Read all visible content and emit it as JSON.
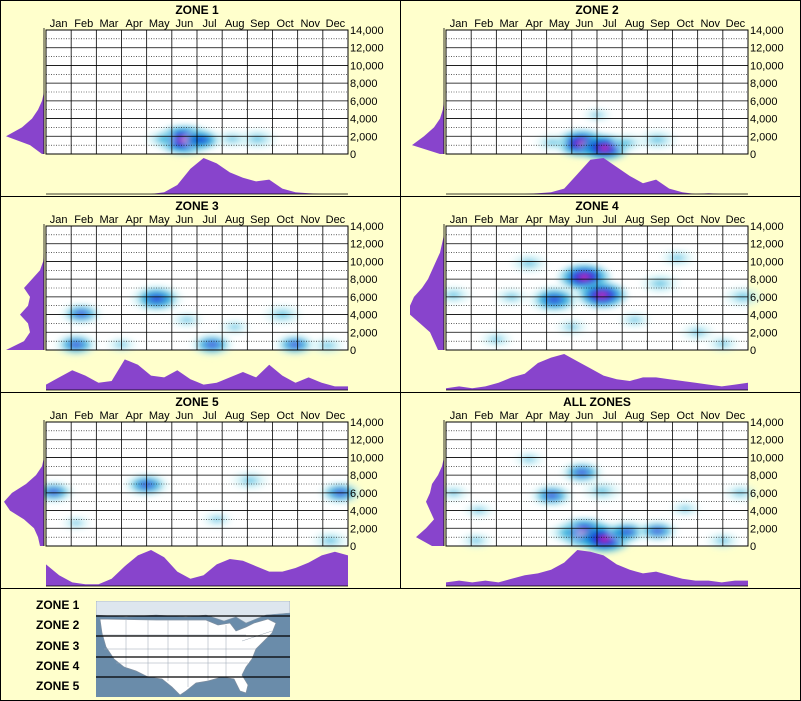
{
  "colors": {
    "background": "#ffffcc",
    "grid_border": "#000000",
    "density_fill": "#8844cc",
    "heat_low": "#c6f0f4",
    "heat_mid": "#16a6d6",
    "heat_high": "#1b2fd9",
    "heat_peak": "#d51fb0",
    "map_water": "#6a8caa",
    "map_land": "#ffffff"
  },
  "chart_data": [
    {
      "type": "heatmap",
      "title": "ZONE 1",
      "categories": [
        "Jan",
        "Feb",
        "Mar",
        "Apr",
        "May",
        "Jun",
        "Jul",
        "Aug",
        "Sep",
        "Oct",
        "Nov",
        "Dec"
      ],
      "y_ticks": [
        "14,000",
        "12,000",
        "10,000",
        "8,000",
        "6,000",
        "4,000",
        "2,000",
        "0"
      ],
      "ylim": [
        0,
        14000
      ],
      "hotspots": [
        {
          "month": 5.5,
          "elev": 1600,
          "intensity": 1.0
        },
        {
          "month": 6.2,
          "elev": 1600,
          "intensity": 0.55
        },
        {
          "month": 4.6,
          "elev": 1700,
          "intensity": 0.3
        },
        {
          "month": 8.4,
          "elev": 1700,
          "intensity": 0.45
        },
        {
          "month": 7.4,
          "elev": 1700,
          "intensity": 0.3
        }
      ],
      "month_density": [
        0,
        0,
        0,
        0,
        0,
        0,
        0,
        0,
        0,
        0.05,
        0.25,
        0.7,
        1.0,
        0.85,
        0.6,
        0.45,
        0.35,
        0.4,
        0.15,
        0.05,
        0.02,
        0,
        0,
        0
      ],
      "elevation_density": [
        0.05,
        0.35,
        0.95,
        0.55,
        0.3,
        0.15,
        0.05,
        0,
        0,
        0,
        0,
        0,
        0,
        0,
        0
      ]
    },
    {
      "type": "heatmap",
      "title": "ZONE 2",
      "categories": [
        "Jan",
        "Feb",
        "Mar",
        "Apr",
        "May",
        "Jun",
        "Jul",
        "Aug",
        "Sep",
        "Oct",
        "Nov",
        "Dec"
      ],
      "y_ticks": [
        "14,000",
        "12,000",
        "10,000",
        "8,000",
        "6,000",
        "4,000",
        "2,000",
        "0"
      ],
      "ylim": [
        0,
        14000
      ],
      "hotspots": [
        {
          "month": 5.4,
          "elev": 1200,
          "intensity": 0.9
        },
        {
          "month": 6.3,
          "elev": 700,
          "intensity": 0.85
        },
        {
          "month": 4.2,
          "elev": 1300,
          "intensity": 0.3
        },
        {
          "month": 8.4,
          "elev": 1600,
          "intensity": 0.45
        },
        {
          "month": 7.2,
          "elev": 1300,
          "intensity": 0.35
        },
        {
          "month": 6.0,
          "elev": 4400,
          "intensity": 0.15
        }
      ],
      "month_density": [
        0,
        0,
        0,
        0,
        0,
        0,
        0,
        0.02,
        0.05,
        0.15,
        0.55,
        0.95,
        1.0,
        0.75,
        0.5,
        0.3,
        0.4,
        0.15,
        0.05,
        0,
        0.02,
        0,
        0,
        0
      ],
      "elevation_density": [
        0.1,
        0.8,
        0.5,
        0.25,
        0.1,
        0.03,
        0,
        0,
        0,
        0,
        0,
        0,
        0,
        0,
        0
      ]
    },
    {
      "type": "heatmap",
      "title": "ZONE 3",
      "categories": [
        "Jan",
        "Feb",
        "Mar",
        "Apr",
        "May",
        "Jun",
        "Jul",
        "Aug",
        "Sep",
        "Oct",
        "Nov",
        "Dec"
      ],
      "y_ticks": [
        "14,000",
        "12,000",
        "10,000",
        "8,000",
        "6,000",
        "4,000",
        "2,000",
        "0"
      ],
      "ylim": [
        0,
        14000
      ],
      "hotspots": [
        {
          "month": 4.4,
          "elev": 5800,
          "intensity": 0.8
        },
        {
          "month": 1.4,
          "elev": 4100,
          "intensity": 0.5
        },
        {
          "month": 1.2,
          "elev": 600,
          "intensity": 0.55
        },
        {
          "month": 9.4,
          "elev": 4000,
          "intensity": 0.45
        },
        {
          "month": 9.9,
          "elev": 600,
          "intensity": 0.5
        },
        {
          "month": 6.6,
          "elev": 600,
          "intensity": 0.55
        },
        {
          "month": 5.6,
          "elev": 3400,
          "intensity": 0.25
        },
        {
          "month": 7.5,
          "elev": 2600,
          "intensity": 0.2
        },
        {
          "month": 11.2,
          "elev": 500,
          "intensity": 0.3
        },
        {
          "month": 3.0,
          "elev": 600,
          "intensity": 0.2
        }
      ],
      "month_density": [
        0.15,
        0.35,
        0.55,
        0.4,
        0.2,
        0.25,
        0.85,
        0.7,
        0.4,
        0.35,
        0.55,
        0.3,
        0.15,
        0.2,
        0.35,
        0.5,
        0.35,
        0.7,
        0.4,
        0.2,
        0.35,
        0.2,
        0.1,
        0.1
      ],
      "elevation_density": [
        0.95,
        0.5,
        0.35,
        0.4,
        0.6,
        0.4,
        0.35,
        0.5,
        0.3,
        0.1,
        0.02,
        0,
        0,
        0,
        0
      ]
    },
    {
      "type": "heatmap",
      "title": "ZONE 4",
      "categories": [
        "Jan",
        "Feb",
        "Mar",
        "Apr",
        "May",
        "Jun",
        "Jul",
        "Aug",
        "Sep",
        "Oct",
        "Nov",
        "Dec"
      ],
      "y_ticks": [
        "14,000",
        "12,000",
        "10,000",
        "8,000",
        "6,000",
        "4,000",
        "2,000",
        "0"
      ],
      "ylim": [
        0,
        14000
      ],
      "hotspots": [
        {
          "month": 5.5,
          "elev": 8200,
          "intensity": 0.9
        },
        {
          "month": 6.2,
          "elev": 6200,
          "intensity": 0.85
        },
        {
          "month": 4.3,
          "elev": 5700,
          "intensity": 0.8
        },
        {
          "month": 3.3,
          "elev": 9800,
          "intensity": 0.4
        },
        {
          "month": 8.5,
          "elev": 7500,
          "intensity": 0.45
        },
        {
          "month": 11.8,
          "elev": 6000,
          "intensity": 0.45
        },
        {
          "month": 0.3,
          "elev": 6200,
          "intensity": 0.35
        },
        {
          "month": 2.6,
          "elev": 6000,
          "intensity": 0.3
        },
        {
          "month": 9.2,
          "elev": 10400,
          "intensity": 0.3
        },
        {
          "month": 10.0,
          "elev": 2000,
          "intensity": 0.3
        },
        {
          "month": 5.0,
          "elev": 2600,
          "intensity": 0.25
        },
        {
          "month": 7.5,
          "elev": 3400,
          "intensity": 0.25
        },
        {
          "month": 11.0,
          "elev": 700,
          "intensity": 0.25
        },
        {
          "month": 2.0,
          "elev": 1200,
          "intensity": 0.25
        }
      ],
      "month_density": [
        0.05,
        0.1,
        0.05,
        0.1,
        0.2,
        0.35,
        0.45,
        0.75,
        0.9,
        1.0,
        0.8,
        0.6,
        0.4,
        0.3,
        0.25,
        0.35,
        0.35,
        0.3,
        0.25,
        0.2,
        0.15,
        0.1,
        0.15,
        0.2
      ],
      "elevation_density": [
        0.15,
        0.25,
        0.35,
        0.6,
        0.85,
        0.85,
        0.75,
        0.55,
        0.4,
        0.3,
        0.2,
        0.1,
        0.05,
        0,
        0
      ]
    },
    {
      "type": "heatmap",
      "title": "ZONE 5",
      "categories": [
        "Jan",
        "Feb",
        "Mar",
        "Apr",
        "May",
        "Jun",
        "Jul",
        "Aug",
        "Sep",
        "Oct",
        "Nov",
        "Dec"
      ],
      "y_ticks": [
        "14,000",
        "12,000",
        "10,000",
        "8,000",
        "6,000",
        "4,000",
        "2,000",
        "0"
      ],
      "ylim": [
        0,
        14000
      ],
      "hotspots": [
        {
          "month": 4.0,
          "elev": 6900,
          "intensity": 0.6
        },
        {
          "month": 0.3,
          "elev": 6100,
          "intensity": 0.5
        },
        {
          "month": 11.7,
          "elev": 6000,
          "intensity": 0.55
        },
        {
          "month": 8.1,
          "elev": 7400,
          "intensity": 0.4
        },
        {
          "month": 11.3,
          "elev": 600,
          "intensity": 0.4
        },
        {
          "month": 6.8,
          "elev": 3000,
          "intensity": 0.2
        },
        {
          "month": 1.2,
          "elev": 2600,
          "intensity": 0.15
        }
      ],
      "month_density": [
        0.6,
        0.3,
        0.1,
        0.05,
        0.05,
        0.2,
        0.55,
        0.85,
        1.0,
        0.8,
        0.4,
        0.2,
        0.3,
        0.6,
        0.75,
        0.7,
        0.55,
        0.4,
        0.4,
        0.5,
        0.65,
        0.85,
        0.95,
        0.85
      ],
      "elevation_density": [
        0.1,
        0.15,
        0.25,
        0.5,
        0.85,
        1.0,
        0.8,
        0.45,
        0.2,
        0.05,
        0,
        0,
        0,
        0,
        0
      ]
    },
    {
      "type": "heatmap",
      "title": "ALL ZONES",
      "categories": [
        "Jan",
        "Feb",
        "Mar",
        "Apr",
        "May",
        "Jun",
        "Jul",
        "Aug",
        "Sep",
        "Oct",
        "Nov",
        "Dec"
      ],
      "y_ticks": [
        "14,000",
        "12,000",
        "10,000",
        "8,000",
        "6,000",
        "4,000",
        "2,000",
        "0"
      ],
      "ylim": [
        0,
        14000
      ],
      "hotspots": [
        {
          "month": 5.5,
          "elev": 1500,
          "intensity": 0.95
        },
        {
          "month": 6.3,
          "elev": 800,
          "intensity": 0.95
        },
        {
          "month": 4.8,
          "elev": 1500,
          "intensity": 0.4
        },
        {
          "month": 7.2,
          "elev": 1600,
          "intensity": 0.55
        },
        {
          "month": 8.4,
          "elev": 1700,
          "intensity": 0.5
        },
        {
          "month": 5.4,
          "elev": 8300,
          "intensity": 0.55
        },
        {
          "month": 4.2,
          "elev": 5700,
          "intensity": 0.55
        },
        {
          "month": 6.2,
          "elev": 6200,
          "intensity": 0.45
        },
        {
          "month": 0.3,
          "elev": 6000,
          "intensity": 0.25
        },
        {
          "month": 11.7,
          "elev": 6000,
          "intensity": 0.3
        },
        {
          "month": 1.3,
          "elev": 4000,
          "intensity": 0.2
        },
        {
          "month": 9.5,
          "elev": 4200,
          "intensity": 0.2
        },
        {
          "month": 11.0,
          "elev": 600,
          "intensity": 0.3
        },
        {
          "month": 1.2,
          "elev": 600,
          "intensity": 0.25
        },
        {
          "month": 3.3,
          "elev": 9800,
          "intensity": 0.2
        }
      ],
      "month_density": [
        0.1,
        0.15,
        0.1,
        0.15,
        0.1,
        0.2,
        0.3,
        0.35,
        0.45,
        0.65,
        1.0,
        0.95,
        0.85,
        0.6,
        0.45,
        0.35,
        0.4,
        0.3,
        0.2,
        0.15,
        0.15,
        0.1,
        0.15,
        0.15
      ],
      "elevation_density": [
        0.3,
        0.7,
        0.45,
        0.25,
        0.35,
        0.45,
        0.35,
        0.3,
        0.15,
        0.05,
        0,
        0,
        0,
        0,
        0
      ]
    }
  ],
  "legend": {
    "zones": [
      "ZONE 1",
      "ZONE 2",
      "ZONE 3",
      "ZONE 4",
      "ZONE 5"
    ]
  }
}
